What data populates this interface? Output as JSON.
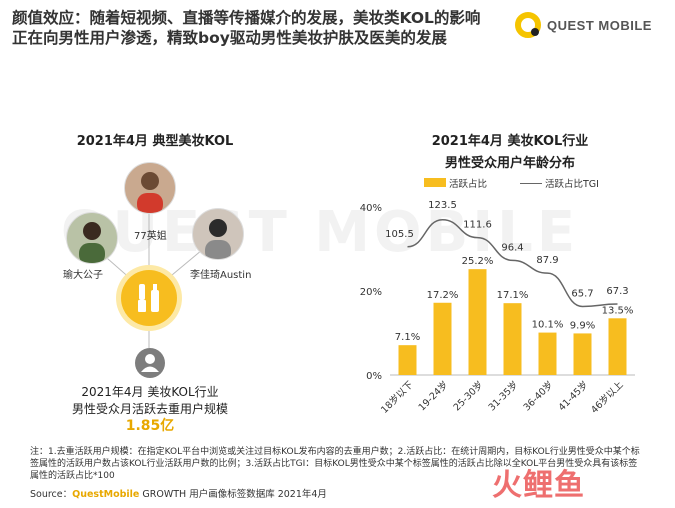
{
  "header": {
    "headline": "颜值效应：随着短视频、直播等传播媒介的发展，美妆类KOL的影响正在向男性用户渗透，精致boy驱动男性美妆护肤及医美的发展",
    "logo_text": "QUEST MOBILE"
  },
  "watermark": "QUEST MOBILE",
  "left_panel": {
    "title": "2021年4月 典型美妆KOL",
    "kols": [
      {
        "name": "77英姐"
      },
      {
        "name": "瑜大公子"
      },
      {
        "name": "李佳琦Austin"
      }
    ],
    "caption_line1": "2021年4月 美妆KOL行业",
    "caption_line2": "男性受众月活跃去重用户规模",
    "scale_value": "1.85亿",
    "colors": {
      "accent": "#f7bd1f",
      "scale_value": "#e8a800"
    }
  },
  "right_panel": {
    "title_line1": "2021年4月 美妆KOL行业",
    "title_line2": "男性受众用户年龄分布",
    "legend_bar": "活跃占比",
    "legend_line": "活跃占比TGI"
  },
  "chart_data": {
    "type": "bar",
    "categories": [
      "18岁以下",
      "19-24岁",
      "25-30岁",
      "31-35岁",
      "36-40岁",
      "41-45岁",
      "46岁以上"
    ],
    "series": [
      {
        "name": "活跃占比",
        "type": "bar",
        "values": [
          7.1,
          17.2,
          25.2,
          17.1,
          10.1,
          9.9,
          13.5
        ],
        "labels": [
          "7.1%",
          "17.2%",
          "25.2%",
          "17.1%",
          "10.1%",
          "9.9%",
          "13.5%"
        ]
      },
      {
        "name": "活跃占比TGI",
        "type": "line",
        "values": [
          105.5,
          123.5,
          111.6,
          96.4,
          87.9,
          65.7,
          67.3
        ],
        "labels": [
          "105.5",
          "123.5",
          "111.6",
          "96.4",
          "87.9",
          "65.7",
          "67.3"
        ]
      }
    ],
    "yticks": [
      "0%",
      "20%",
      "40%"
    ],
    "ylim": [
      0,
      40
    ],
    "colors": {
      "bar": "#f7bd1f",
      "line": "#666666"
    }
  },
  "notes": "注：1.去重活跃用户规模：在指定KOL平台中浏览或关注过目标KOL发布内容的去重用户数；2.活跃占比：在统计周期内，目标KOL行业男性受众中某个标签属性的活跃用户数占该KOL行业活跃用户数的比例；3.活跃占比TGI：目标KOL男性受众中某个标签属性的活跃占比除以全KOL平台男性受众具有该标签属性的活跃占比*100",
  "source": {
    "prefix": "Source：",
    "brand": "QuestMobile",
    "text": "GROWTH 用户画像标签数据库 2021年4月"
  },
  "brand_watermark": "火鲤鱼"
}
